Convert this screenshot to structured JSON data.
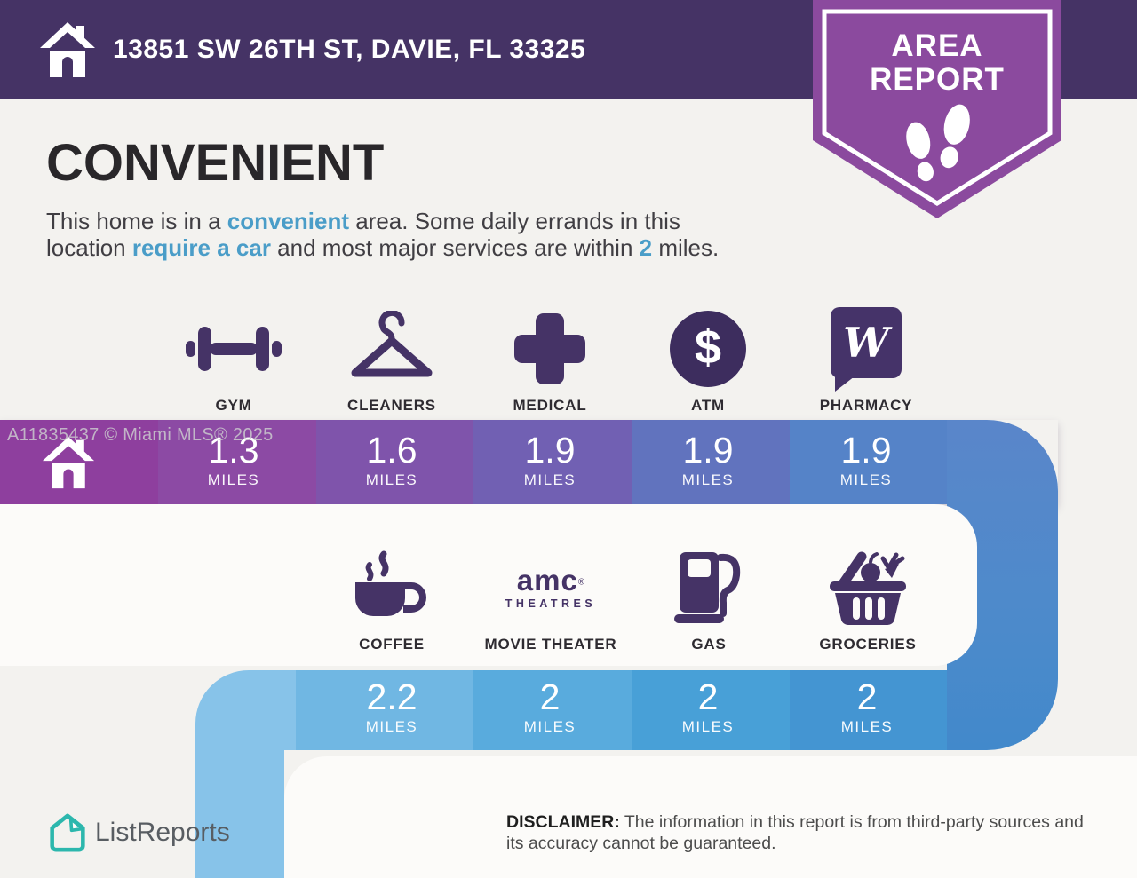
{
  "header": {
    "address": "13851 SW 26TH ST, DAVIE, FL 33325"
  },
  "badge": {
    "line1": "AREA",
    "line2": "REPORT"
  },
  "title": "CONVENIENT",
  "intro": {
    "segments": [
      {
        "text": "This home is in a "
      },
      {
        "text": "convenient",
        "accent": true
      },
      {
        "text": " area. Some daily errands in this"
      },
      {
        "br": true
      },
      {
        "text": "location "
      },
      {
        "text": "require a car",
        "accent": true
      },
      {
        "text": " and most major services are within "
      },
      {
        "text": "2",
        "accent": true
      },
      {
        "text": " miles."
      }
    ]
  },
  "watermark": "A11835437 © Miami MLS® 2025",
  "rows": [
    {
      "items": [
        {
          "label": "GYM",
          "value": "1.3",
          "unit": "MILES"
        },
        {
          "label": "CLEANERS",
          "value": "1.6",
          "unit": "MILES"
        },
        {
          "label": "MEDICAL",
          "value": "1.9",
          "unit": "MILES"
        },
        {
          "label": "ATM",
          "value": "1.9",
          "unit": "MILES",
          "icon_char": "$"
        },
        {
          "label": "PHARMACY",
          "value": "1.9",
          "unit": "MILES",
          "icon_char": "W"
        }
      ]
    },
    {
      "items": [
        {
          "label": "COFFEE",
          "value": "2.2",
          "unit": "MILES"
        },
        {
          "label": "MOVIE THEATER",
          "value": "2",
          "unit": "MILES",
          "logo_word": "amc",
          "logo_reg": "®",
          "logo_sub": "THEATRES"
        },
        {
          "label": "GAS",
          "value": "2",
          "unit": "MILES"
        },
        {
          "label": "GROCERIES",
          "value": "2",
          "unit": "MILES"
        }
      ]
    }
  ],
  "footer": {
    "brand": "ListReports",
    "disclaimer_label": "DISCLAIMER:",
    "disclaimer_text": " The information in this report is from third-party sources and its accuracy cannot be guaranteed."
  },
  "colors": {
    "header_purple": "#453365",
    "badge_purple": "#8b4a9e",
    "icon_purple": "#453366",
    "accent_blue": "#4a9dc8",
    "brand_teal": "#2cb7ad",
    "road_row1": [
      "#8e3f9e",
      "#8c4aa4",
      "#7f54ab",
      "#7160b3",
      "#6173be",
      "#5583c8"
    ],
    "road_row2": [
      "#87c3e9",
      "#70b7e3",
      "#59abdd",
      "#48a0d7",
      "#4495d2"
    ],
    "road_right": "#4a89cb"
  }
}
